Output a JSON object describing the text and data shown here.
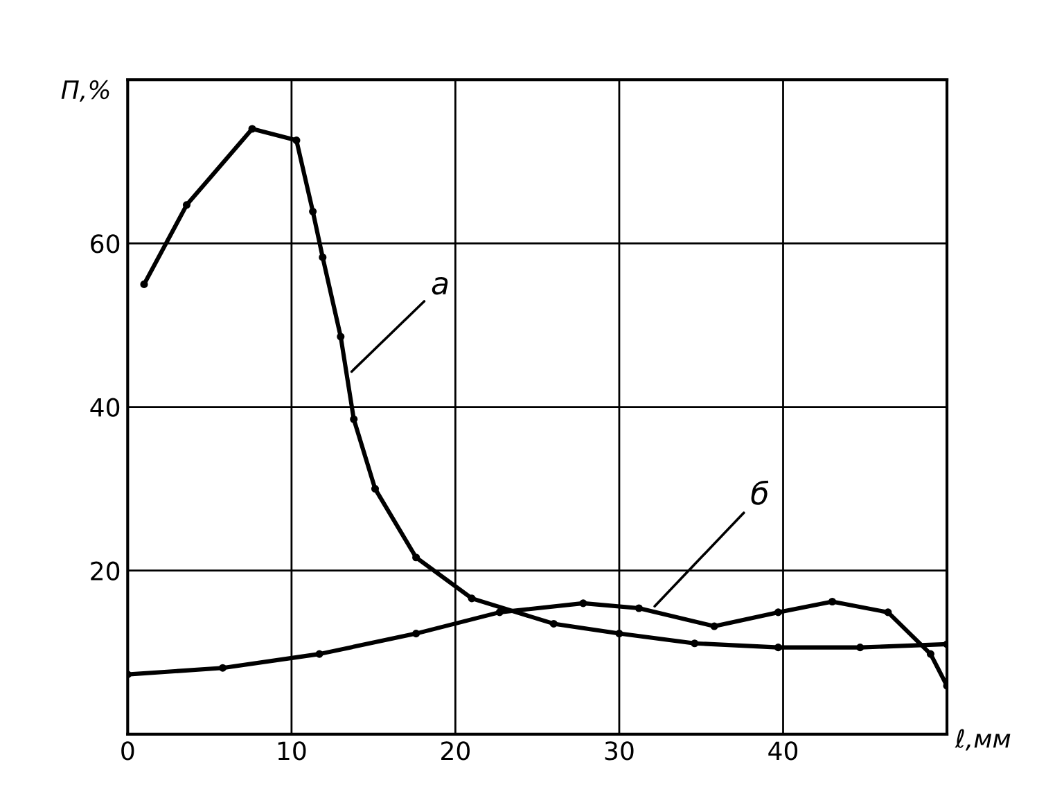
{
  "chart_data": {
    "type": "line",
    "xlabel": "ℓ,мм",
    "ylabel": "П,%",
    "xlim": [
      0,
      50
    ],
    "ylim": [
      0,
      80
    ],
    "xticks": [
      0,
      10,
      20,
      30,
      40
    ],
    "yticks": [
      {
        "value": 0,
        "label": null
      },
      20,
      40,
      60,
      {
        "value": 80,
        "label": null
      }
    ],
    "grid": true,
    "marker": "circle",
    "line_style": "solid",
    "series": [
      {
        "color": "#000000",
        "x": [
          1,
          3.6,
          7.6,
          10.3,
          11.3,
          11.9,
          13,
          13.8,
          15.1,
          17.6,
          21,
          26,
          30,
          34.6,
          39.7,
          44.7,
          50
        ],
        "values": [
          55,
          64.7,
          74,
          72.6,
          63.9,
          58.3,
          48.6,
          38.5,
          30,
          21.6,
          16.6,
          13.5,
          12.3,
          11.1,
          10.6,
          10.6,
          11
        ]
      },
      {
        "color": "#000000",
        "x": [
          0,
          5.8,
          11.7,
          17.6,
          22.7,
          27.8,
          31.2,
          35.8,
          39.7,
          43,
          46.4,
          49,
          50
        ],
        "values": [
          7.3,
          8.1,
          9.8,
          12.3,
          14.9,
          16,
          15.4,
          13.2,
          14.9,
          16.2,
          14.9,
          9.8,
          5.9
        ]
      }
    ],
    "annotations": [
      {
        "text": "а",
        "x": 13.5,
        "y": 44
      },
      {
        "text": "б",
        "x": 32,
        "y": 15.3
      }
    ]
  }
}
